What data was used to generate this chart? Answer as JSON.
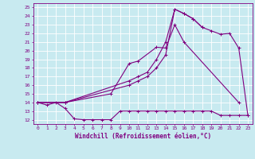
{
  "background_color": "#c8eaf0",
  "grid_color": "#ffffff",
  "line_color": "#800080",
  "xlabel": "Windchill (Refroidissement éolien,°C)",
  "ylabel_ticks": [
    12,
    13,
    14,
    15,
    16,
    17,
    18,
    19,
    20,
    21,
    22,
    23,
    24,
    25
  ],
  "xticks": [
    0,
    1,
    2,
    3,
    4,
    5,
    6,
    7,
    8,
    9,
    10,
    11,
    12,
    13,
    14,
    15,
    16,
    17,
    18,
    19,
    20,
    21,
    22,
    23
  ],
  "xlim": [
    -0.5,
    23.5
  ],
  "ylim": [
    11.5,
    25.5
  ],
  "s1_x": [
    0,
    1,
    2,
    3,
    4,
    5,
    6,
    7,
    8,
    9,
    10,
    11,
    12,
    13,
    14,
    15,
    16,
    17,
    18,
    19,
    20,
    21,
    22,
    23
  ],
  "s1_y": [
    14.0,
    13.7,
    14.0,
    13.3,
    12.1,
    12.0,
    12.0,
    12.0,
    12.0,
    13.0,
    13.0,
    13.0,
    13.0,
    13.0,
    13.0,
    13.0,
    13.0,
    13.0,
    13.0,
    13.0,
    12.5,
    12.5,
    12.5,
    12.5
  ],
  "s2_x": [
    0,
    3,
    8,
    10,
    11,
    13,
    14,
    15,
    16,
    22
  ],
  "s2_y": [
    14.0,
    14.0,
    15.0,
    18.5,
    18.8,
    20.4,
    20.3,
    23.0,
    21.0,
    14.0
  ],
  "s3_x": [
    0,
    3,
    10,
    11,
    12,
    13,
    14,
    15,
    16,
    17,
    18
  ],
  "s3_y": [
    14.0,
    14.0,
    16.0,
    16.5,
    17.0,
    18.0,
    19.5,
    24.8,
    24.3,
    23.7,
    22.7
  ],
  "s4_x": [
    0,
    3,
    10,
    11,
    12,
    13,
    14,
    15,
    16,
    17,
    18,
    19,
    20,
    21,
    22,
    23
  ],
  "s4_y": [
    14.0,
    14.0,
    16.5,
    17.0,
    17.5,
    19.0,
    21.0,
    24.8,
    24.3,
    23.7,
    22.7,
    22.3,
    21.9,
    22.0,
    20.3,
    12.5
  ],
  "lw": 0.8,
  "ms": 2.5,
  "tick_fontsize": 4.5,
  "xlabel_fontsize": 5.5
}
